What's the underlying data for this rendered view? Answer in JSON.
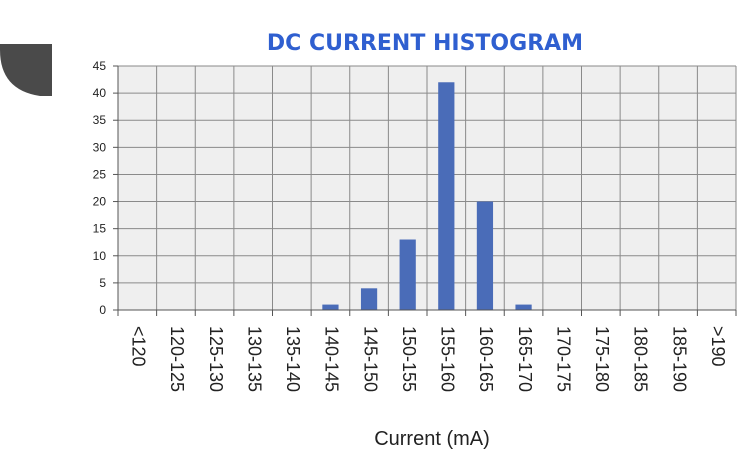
{
  "chart_data": {
    "type": "bar",
    "title": "DC CURRENT HISTOGRAM",
    "xlabel": "Current (mA)",
    "ylabel": "",
    "categories": [
      "<120",
      "120-125",
      "125-130",
      "130-135",
      "135-140",
      "140-145",
      "145-150",
      "150-155",
      "155-160",
      "160-165",
      "165-170",
      "170-175",
      "175-180",
      "180-185",
      "185-190",
      ">190"
    ],
    "values": [
      0,
      0,
      0,
      0,
      0,
      1,
      4,
      13,
      42,
      20,
      1,
      0,
      0,
      0,
      0,
      0
    ],
    "ylim": [
      0,
      45
    ],
    "yticks": [
      0,
      5,
      10,
      15,
      20,
      25,
      30,
      35,
      40,
      45
    ],
    "grid": true,
    "legend": "none",
    "colors": {
      "bar": "#4a6cb8",
      "title": "#2f5fd0",
      "plot_background": "#efefef",
      "grid": "#8a8a8a",
      "decoration": "#4a4a4a"
    }
  }
}
